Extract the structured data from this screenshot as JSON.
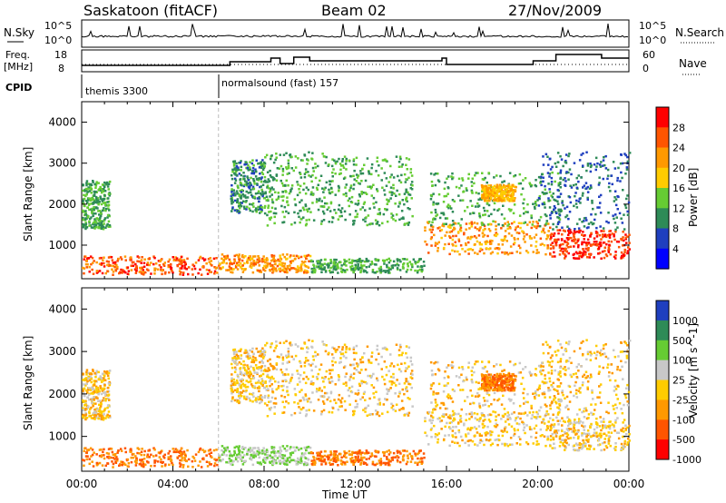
{
  "header": {
    "station": "Saskatoon (fitACF)",
    "beam": "Beam 02",
    "date": "27/Nov/2009"
  },
  "panels": {
    "nsky_label": "N.Sky",
    "nsearch_label": "N.Search",
    "freq_label_1": "Freq.",
    "freq_label_2": "[MHz]",
    "nave_label": "Nave",
    "cpid_label": "CPID",
    "cpid_segments": [
      {
        "label": "themis 3300",
        "start_h": 0,
        "end_h": 6
      },
      {
        "label": "normalsound (fast) 157",
        "start_h": 6,
        "end_h": 24
      }
    ],
    "noise_ticks_left": [
      "10^5",
      "10^0"
    ],
    "noise_ticks_right": [
      "10^5",
      "10^0"
    ],
    "freq_ticks_left": [
      "18",
      "8"
    ],
    "nave_ticks_right": [
      "60",
      "0"
    ]
  },
  "chart_data": [
    {
      "type": "heatmap",
      "name_hint": "power",
      "ylabel": "Slant Range [km]",
      "xlabel": "Time UT",
      "xlim": [
        0,
        24
      ],
      "ylim": [
        180,
        4500
      ],
      "x_ticks": [
        "00:00",
        "04:00",
        "08:00",
        "12:00",
        "16:00",
        "20:00",
        "00:00"
      ],
      "y_ticks": [
        1000,
        2000,
        3000,
        4000
      ],
      "colorbar": {
        "label": "Power [dB]",
        "ticks": [
          "28",
          "24",
          "20",
          "16",
          "12",
          "8",
          "4"
        ],
        "colors": [
          "#ff0000",
          "#ff5500",
          "#ff9900",
          "#ffcc00",
          "#66cc33",
          "#2e8b57",
          "#1f3fbf",
          "#0000ff"
        ]
      },
      "regions": [
        {
          "t0": 0.0,
          "t1": 6.0,
          "r0": 300,
          "r1": 750,
          "level": 26
        },
        {
          "t0": 0.0,
          "t1": 1.2,
          "r0": 1400,
          "r1": 2600,
          "level": 12
        },
        {
          "t0": 6.0,
          "t1": 10.0,
          "r0": 350,
          "r1": 800,
          "level": 22
        },
        {
          "t0": 6.5,
          "t1": 8.0,
          "r0": 1800,
          "r1": 3100,
          "level": 10
        },
        {
          "t0": 8.0,
          "t1": 11.0,
          "r0": 1500,
          "r1": 3300,
          "level": 12
        },
        {
          "t0": 11.0,
          "t1": 14.5,
          "r0": 1500,
          "r1": 3200,
          "level": 12
        },
        {
          "t0": 10.0,
          "t1": 15.0,
          "r0": 350,
          "r1": 700,
          "level": 12
        },
        {
          "t0": 15.0,
          "t1": 20.5,
          "r0": 800,
          "r1": 1600,
          "level": 22
        },
        {
          "t0": 15.2,
          "t1": 21.0,
          "r0": 1500,
          "r1": 2800,
          "level": 12
        },
        {
          "t0": 17.5,
          "t1": 19.0,
          "r0": 2100,
          "r1": 2500,
          "level": 20
        },
        {
          "t0": 20.5,
          "t1": 24.0,
          "r0": 700,
          "r1": 1400,
          "level": 28
        },
        {
          "t0": 20.0,
          "t1": 24.0,
          "r0": 1400,
          "r1": 3300,
          "level": 8
        }
      ]
    },
    {
      "type": "heatmap",
      "name_hint": "velocity",
      "ylabel": "Slant Range [km]",
      "xlabel": "Time UT",
      "xlim": [
        0,
        24
      ],
      "ylim": [
        180,
        4500
      ],
      "x_ticks": [
        "00:00",
        "04:00",
        "08:00",
        "12:00",
        "16:00",
        "20:00",
        "00:00"
      ],
      "y_ticks": [
        1000,
        2000,
        3000,
        4000
      ],
      "colorbar": {
        "label": "Velocity [m s^-1]",
        "ticks": [
          "1000",
          "500",
          "100",
          "25",
          "-25",
          "-100",
          "-500",
          "-1000"
        ],
        "colors": [
          "#1f3fbf",
          "#2e8b57",
          "#66cc33",
          "#c8c8c8",
          "#ffcc00",
          "#ff9900",
          "#ff5500",
          "#ff0000"
        ]
      },
      "regions": [
        {
          "t0": 0.0,
          "t1": 6.0,
          "r0": 300,
          "r1": 750,
          "level": -100
        },
        {
          "t0": 0.0,
          "t1": 1.2,
          "r0": 1400,
          "r1": 2600,
          "level": 0
        },
        {
          "t0": 6.0,
          "t1": 10.0,
          "r0": 350,
          "r1": 800,
          "level": 100
        },
        {
          "t0": 6.5,
          "t1": 8.0,
          "r0": 1800,
          "r1": 3100,
          "level": 0
        },
        {
          "t0": 8.0,
          "t1": 11.0,
          "r0": 1500,
          "r1": 3300,
          "level": 0
        },
        {
          "t0": 11.0,
          "t1": 14.5,
          "r0": 1500,
          "r1": 3200,
          "level": 0
        },
        {
          "t0": 10.0,
          "t1": 15.0,
          "r0": 350,
          "r1": 700,
          "level": -100
        },
        {
          "t0": 15.0,
          "t1": 20.5,
          "r0": 800,
          "r1": 1600,
          "level": 0
        },
        {
          "t0": 15.2,
          "t1": 21.0,
          "r0": 1500,
          "r1": 2800,
          "level": 0
        },
        {
          "t0": 17.5,
          "t1": 19.0,
          "r0": 2100,
          "r1": 2500,
          "level": -100
        },
        {
          "t0": 20.5,
          "t1": 24.0,
          "r0": 700,
          "r1": 1400,
          "level": 0
        },
        {
          "t0": 20.0,
          "t1": 24.0,
          "r0": 1400,
          "r1": 3300,
          "level": 0
        }
      ]
    }
  ]
}
